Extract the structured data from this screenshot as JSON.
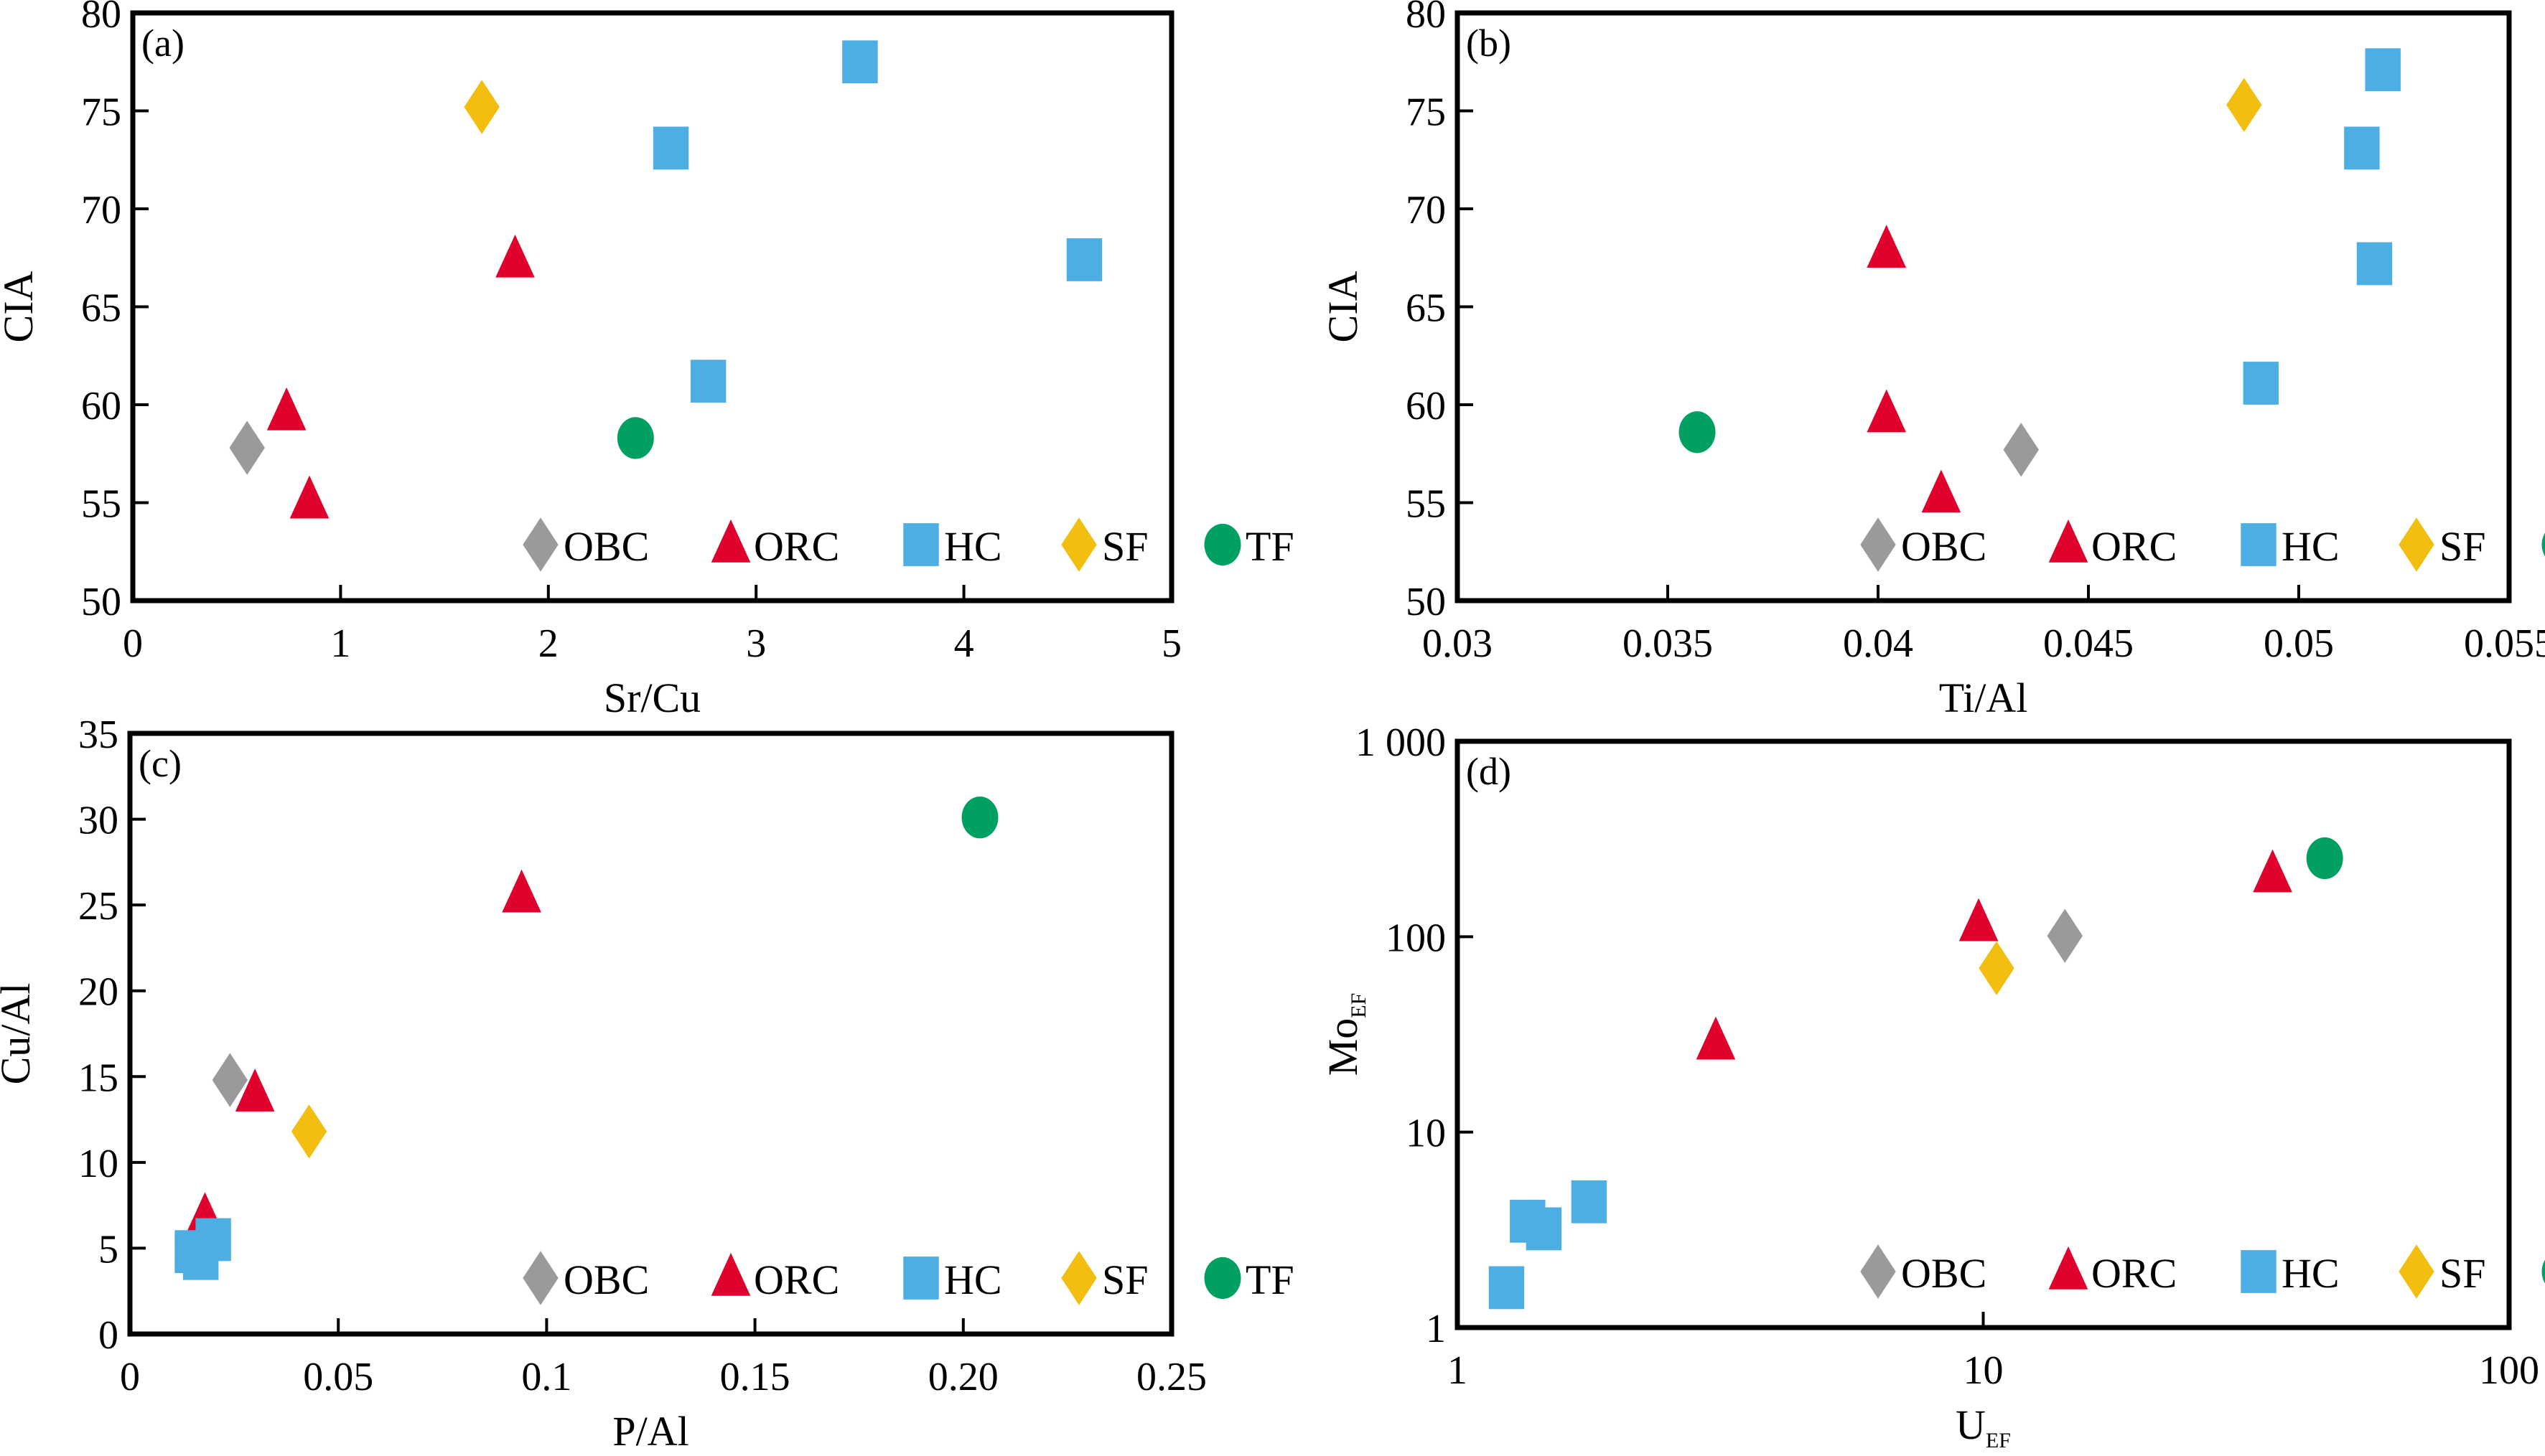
{
  "colors": {
    "OBC": "#9a9a9a",
    "ORC": "#e0002c",
    "HC": "#4daee3",
    "SF": "#f2be10",
    "TF": "#00a062"
  },
  "legend": [
    {
      "key": "OBC",
      "label": "OBC",
      "marker": "diamond"
    },
    {
      "key": "ORC",
      "label": "ORC",
      "marker": "triangle"
    },
    {
      "key": "HC",
      "label": "HC",
      "marker": "square"
    },
    {
      "key": "SF",
      "label": "SF",
      "marker": "diamond"
    },
    {
      "key": "TF",
      "label": "TF",
      "marker": "circle"
    }
  ],
  "chart_data": [
    {
      "type": "scatter",
      "panel": "(a)",
      "xlabel": "Sr/Cu",
      "ylabel": "CIA",
      "xscale": "linear",
      "yscale": "linear",
      "xlim": [
        0,
        5
      ],
      "ylim": [
        50,
        80
      ],
      "xticks": [
        0,
        1,
        2,
        3,
        4,
        5
      ],
      "xtick_labels": [
        "0",
        "1",
        "2",
        "3",
        "4",
        "5"
      ],
      "yticks": [
        50,
        55,
        60,
        65,
        70,
        75,
        80
      ],
      "ytick_labels": [
        "50",
        "55",
        "60",
        "65",
        "70",
        "75",
        "80"
      ],
      "grid": false,
      "legend_position": "bottom-right",
      "series": [
        {
          "name": "OBC",
          "points": [
            [
              0.55,
              57.8
            ]
          ]
        },
        {
          "name": "ORC",
          "points": [
            [
              0.74,
              59.6
            ],
            [
              0.85,
              55.1
            ],
            [
              1.84,
              67.4
            ]
          ]
        },
        {
          "name": "HC",
          "points": [
            [
              3.5,
              77.5
            ],
            [
              2.59,
              73.1
            ],
            [
              4.58,
              67.4
            ],
            [
              2.77,
              61.2
            ]
          ]
        },
        {
          "name": "SF",
          "points": [
            [
              1.68,
              75.2
            ]
          ]
        },
        {
          "name": "TF",
          "points": [
            [
              2.42,
              58.3
            ]
          ]
        }
      ]
    },
    {
      "type": "scatter",
      "panel": "(b)",
      "xlabel": "Ti/Al",
      "ylabel": "CIA",
      "xscale": "linear",
      "yscale": "linear",
      "xlim": [
        0.03,
        0.055
      ],
      "ylim": [
        50,
        80
      ],
      "xticks": [
        0.03,
        0.035,
        0.04,
        0.045,
        0.05,
        0.055
      ],
      "xtick_labels": [
        "0.03",
        "0.035",
        "0.04",
        "0.045",
        "0.05",
        "0.055"
      ],
      "yticks": [
        50,
        55,
        60,
        65,
        70,
        75,
        80
      ],
      "ytick_labels": [
        "50",
        "55",
        "60",
        "65",
        "70",
        "75",
        "80"
      ],
      "grid": false,
      "legend_position": "bottom-right",
      "series": [
        {
          "name": "OBC",
          "points": [
            [
              0.0434,
              57.7
            ]
          ]
        },
        {
          "name": "ORC",
          "points": [
            [
              0.0402,
              67.9
            ],
            [
              0.0402,
              59.5
            ],
            [
              0.0415,
              55.4
            ]
          ]
        },
        {
          "name": "HC",
          "points": [
            [
              0.052,
              77.1
            ],
            [
              0.0515,
              73.1
            ],
            [
              0.0518,
              67.2
            ],
            [
              0.0491,
              61.1
            ]
          ]
        },
        {
          "name": "SF",
          "points": [
            [
              0.0487,
              75.3
            ]
          ]
        },
        {
          "name": "TF",
          "points": [
            [
              0.0357,
              58.6
            ]
          ]
        }
      ]
    },
    {
      "type": "scatter",
      "panel": "(c)",
      "xlabel": "P/Al",
      "ylabel": "Cu/Al",
      "xscale": "linear",
      "yscale": "linear",
      "xlim": [
        0,
        0.25
      ],
      "ylim": [
        0,
        35
      ],
      "xticks": [
        0,
        0.05,
        0.1,
        0.15,
        0.2,
        0.25
      ],
      "xtick_labels": [
        "0",
        "0.05",
        "0.1",
        "0.15",
        "0.20",
        "0.25"
      ],
      "yticks": [
        0,
        5,
        10,
        15,
        20,
        25,
        30,
        35
      ],
      "ytick_labels": [
        "0",
        "5",
        "10",
        "15",
        "20",
        "25",
        "30",
        "35"
      ],
      "grid": false,
      "legend_position": "bottom-right",
      "series": [
        {
          "name": "OBC",
          "points": [
            [
              0.024,
              14.8
            ]
          ]
        },
        {
          "name": "ORC",
          "points": [
            [
              0.018,
              6.8
            ],
            [
              0.03,
              14.0
            ],
            [
              0.094,
              25.6
            ]
          ]
        },
        {
          "name": "HC",
          "points": [
            [
              0.015,
              4.8
            ],
            [
              0.02,
              5.5
            ],
            [
              0.017,
              4.4
            ]
          ]
        },
        {
          "name": "SF",
          "points": [
            [
              0.043,
              11.8
            ]
          ]
        },
        {
          "name": "TF",
          "points": [
            [
              0.204,
              30.1
            ]
          ]
        }
      ]
    },
    {
      "type": "scatter",
      "panel": "(d)",
      "xlabel": "U",
      "xlabel_sub": "EF",
      "ylabel": "Mo",
      "ylabel_sub": "EF",
      "xscale": "log",
      "yscale": "log",
      "xlim": [
        1,
        100
      ],
      "ylim": [
        1,
        1000
      ],
      "xticks": [
        1,
        10,
        100
      ],
      "xtick_labels": [
        "1",
        "10",
        "100"
      ],
      "yticks": [
        1,
        10,
        100,
        1000
      ],
      "ytick_labels": [
        "1",
        "10",
        "100",
        "1 000"
      ],
      "grid": false,
      "legend_position": "bottom-right",
      "series": [
        {
          "name": "OBC",
          "points": [
            [
              14.3,
              101
            ]
          ]
        },
        {
          "name": "ORC",
          "points": [
            [
              3.1,
              29
            ],
            [
              9.8,
              117
            ],
            [
              35.5,
              208
            ]
          ]
        },
        {
          "name": "HC",
          "points": [
            [
              1.24,
              1.6
            ],
            [
              1.36,
              3.5
            ],
            [
              1.46,
              3.2
            ],
            [
              1.78,
              4.4
            ]
          ]
        },
        {
          "name": "SF",
          "points": [
            [
              10.6,
              69
            ]
          ]
        },
        {
          "name": "TF",
          "points": [
            [
              44.6,
              252
            ]
          ]
        }
      ]
    }
  ]
}
